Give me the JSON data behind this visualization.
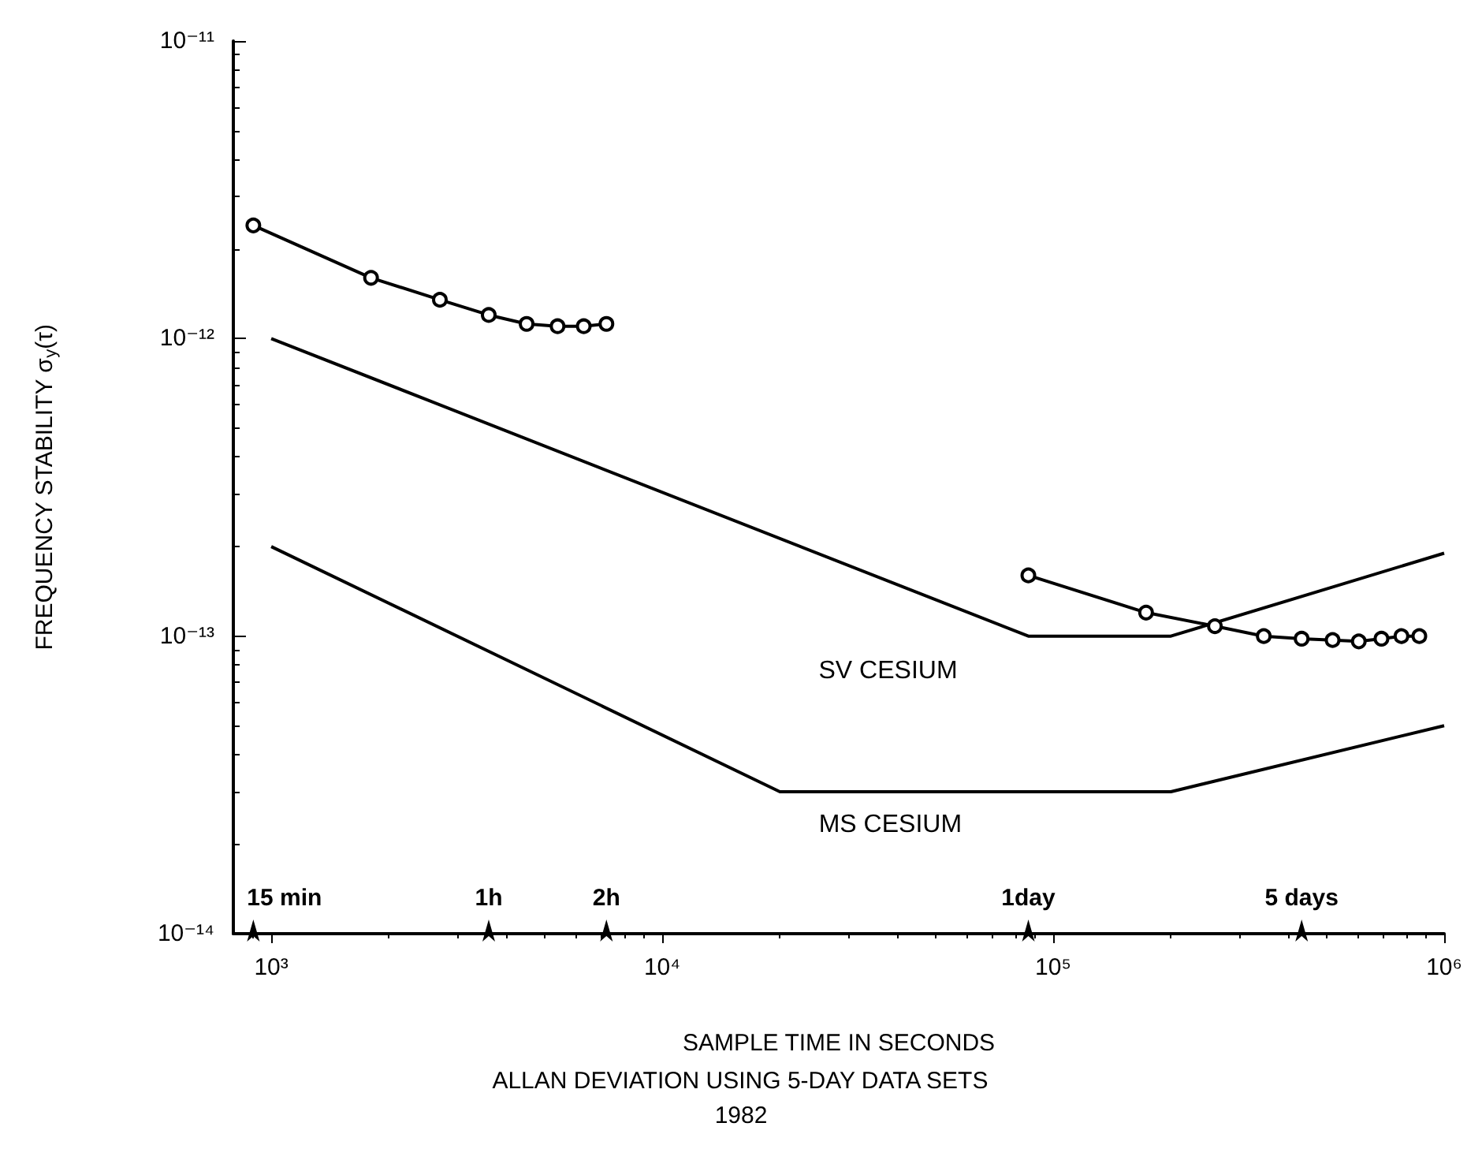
{
  "chart_data": {
    "type": "line",
    "xlabel": "SAMPLE TIME IN SECONDS",
    "ylabel": "FREQUENCY STABILITY σ$_{y}$(τ)",
    "log": "xy",
    "grid": false,
    "legend": false,
    "line_style": "solid",
    "xlim": [
      800,
      1000000
    ],
    "xticks": [
      {
        "value": 1000,
        "label": "10³"
      },
      {
        "value": 10000,
        "label": "10⁴"
      },
      {
        "value": 100000,
        "label": "10⁵"
      },
      {
        "value": 1000000,
        "label": "10⁶"
      }
    ],
    "ylim": [
      1e-14,
      1e-11
    ],
    "yticks": [
      {
        "value": 1e-14,
        "label": "10⁻¹⁴"
      },
      {
        "value": 1e-13,
        "label": "10⁻¹³"
      },
      {
        "value": 1e-12,
        "label": "10⁻¹²"
      },
      {
        "value": 1e-11,
        "label": "10⁻¹¹"
      }
    ],
    "series": [
      {
        "color": "#000000",
        "marker": "circle",
        "x": [
          900,
          1800,
          2700,
          3600,
          4500,
          5400,
          6300,
          7200
        ],
        "values": [
          2.4e-12,
          1.6e-12,
          1.35e-12,
          1.2e-12,
          1.12e-12,
          1.1e-12,
          1.1e-12,
          1.12e-12
        ]
      },
      {
        "color": "#000000",
        "marker": "circle",
        "x": [
          86400,
          172800,
          259200,
          345600,
          432000,
          518400,
          604800,
          691200,
          777600,
          864000
        ],
        "values": [
          1.6e-13,
          1.2e-13,
          1.08e-13,
          1e-13,
          9.8e-14,
          9.7e-14,
          9.6e-14,
          9.8e-14,
          1e-13,
          1e-13
        ]
      },
      {
        "name": "SV CESIUM",
        "color": "#000000",
        "marker": "none",
        "x": [
          1000,
          86400,
          200000,
          1000000
        ],
        "values": [
          1e-12,
          1e-13,
          1e-13,
          1.9e-13
        ]
      },
      {
        "name": "MS CESIUM",
        "color": "#000000",
        "marker": "none",
        "x": [
          1000,
          20000,
          200000,
          1000000
        ],
        "values": [
          2e-13,
          3e-14,
          3e-14,
          5e-14
        ]
      }
    ],
    "annotations": [
      {
        "text": "15 min",
        "x": 900,
        "y": 1e-14
      },
      {
        "text": "1h",
        "x": 3600,
        "y": 1e-14
      },
      {
        "text": "2h",
        "x": 7200,
        "y": 1e-14
      },
      {
        "text": "1day",
        "x": 86400,
        "y": 1e-14
      },
      {
        "text": "5 days",
        "x": 432000,
        "y": 1e-14
      },
      "ALLAN DEVIATION USING 5-DAY DATA SETS",
      "1982"
    ]
  }
}
